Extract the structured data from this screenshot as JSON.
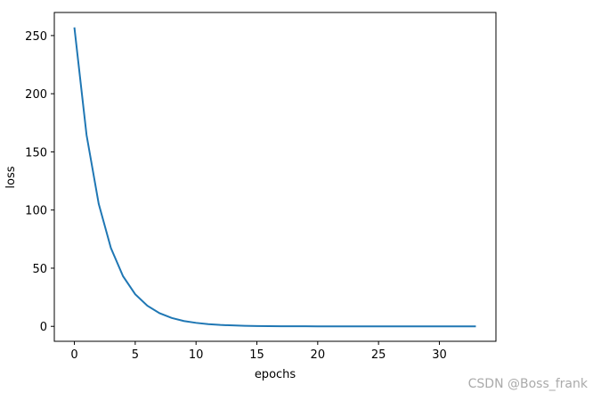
{
  "chart_data": {
    "type": "line",
    "x_label": "epochs",
    "y_label": "loss",
    "x": [
      0,
      1,
      2,
      3,
      4,
      5,
      6,
      7,
      8,
      9,
      10,
      11,
      12,
      13,
      14,
      15,
      16,
      17,
      18,
      19,
      20,
      21,
      22,
      23,
      24,
      25,
      26,
      27,
      28,
      29,
      30,
      31,
      32,
      33
    ],
    "series": [
      {
        "name": "loss",
        "color": "#1f77b4",
        "values": [
          257,
          164.5,
          105.3,
          67.4,
          43.1,
          27.6,
          17.7,
          11.3,
          7.2,
          4.6,
          3.0,
          1.9,
          1.2,
          0.8,
          0.5,
          0.3,
          0.2,
          0.1,
          0.1,
          0.1,
          0,
          0,
          0,
          0,
          0,
          0,
          0,
          0,
          0,
          0,
          0,
          0,
          0,
          0
        ]
      }
    ],
    "xlim": [
      -1.65,
      34.65
    ],
    "xticks": [
      0,
      5,
      10,
      15,
      20,
      25,
      30
    ],
    "ylim": [
      -12.85,
      269.85
    ],
    "yticks": [
      0,
      50,
      100,
      150,
      200,
      250
    ],
    "grid": false
  },
  "watermark": "CSDN @Boss_frank"
}
